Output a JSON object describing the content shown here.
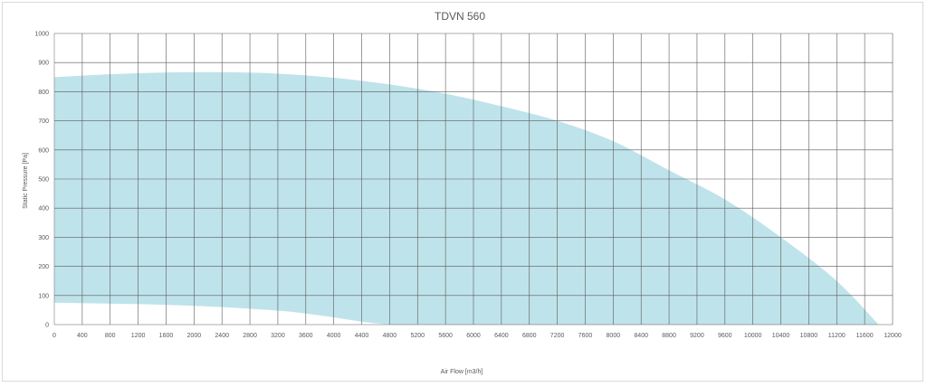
{
  "chart_data": {
    "type": "area",
    "title": "TDVN 560",
    "xlabel": "Air Flow [m3/h]",
    "ylabel": "Static Pressure [Pa]",
    "xlim": [
      0,
      12000
    ],
    "ylim": [
      0,
      1000
    ],
    "x_ticks": [
      "0",
      "400",
      "800",
      "1200",
      "1600",
      "2000",
      "2400",
      "2800",
      "3200",
      "3600",
      "4000",
      "4400",
      "4800",
      "5200",
      "5600",
      "6000",
      "6400",
      "6800",
      "7200",
      "7600",
      "8000",
      "8400",
      "8800",
      "9200",
      "9600",
      "10000",
      "10400",
      "10800",
      "11200",
      "11600",
      "12000"
    ],
    "y_ticks": [
      "0",
      "100",
      "200",
      "300",
      "400",
      "500",
      "600",
      "700",
      "800",
      "900",
      "1000"
    ],
    "grid": true,
    "fill_color": "#bfe3ea",
    "series": [
      {
        "role": "upper",
        "x": [
          0,
          800,
          1600,
          2400,
          3200,
          4000,
          4800,
          5600,
          6400,
          7200,
          8000,
          8800,
          9600,
          10400,
          11200,
          11800
        ],
        "y": [
          850,
          860,
          866,
          867,
          862,
          848,
          825,
          793,
          750,
          700,
          630,
          530,
          430,
          300,
          150,
          0
        ]
      },
      {
        "role": "lower",
        "x": [
          0,
          800,
          1600,
          2400,
          3200,
          3600,
          4000,
          4400,
          4800
        ],
        "y": [
          75,
          72,
          68,
          60,
          48,
          38,
          25,
          10,
          0
        ]
      }
    ]
  }
}
